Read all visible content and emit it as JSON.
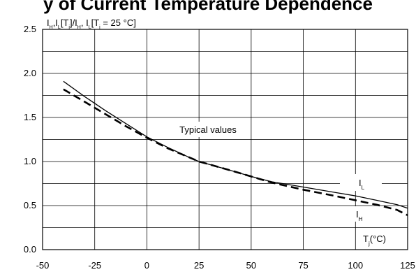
{
  "chart_data": {
    "type": "line",
    "title": "y of Current Temperature Dependence",
    "ylabel": {
      "prefix": "I",
      "s1": "H",
      "m1": ",I",
      "s2": "L",
      "m2": "[T",
      "s3": "j",
      "m3": "]/I",
      "s4": "H",
      "m4": ", I",
      "s5": "L",
      "m5": "[T",
      "s6": "j",
      "m6": " = 25 °C]"
    },
    "xlabel": {
      "prefix": "T",
      "s1": "j",
      "suffix": "(°C)"
    },
    "annotation": "Typical values",
    "x_ticks": [
      "-50",
      "-25",
      "0",
      "25",
      "50",
      "75",
      "100",
      "125"
    ],
    "y_ticks": [
      "0.0",
      "0.5",
      "1.0",
      "1.5",
      "2.0",
      "2.5"
    ],
    "xlim": [
      -50,
      125
    ],
    "ylim": [
      0,
      2.5
    ],
    "grid": true,
    "series": [
      {
        "name": "I_L",
        "label_main": "I",
        "label_sub": "L",
        "style": "solid",
        "points": [
          [
            -40,
            1.91
          ],
          [
            -30,
            1.74
          ],
          [
            -20,
            1.58
          ],
          [
            -10,
            1.43
          ],
          [
            0,
            1.28
          ],
          [
            10,
            1.16
          ],
          [
            20,
            1.05
          ],
          [
            25,
            1.0
          ],
          [
            40,
            0.9
          ],
          [
            50,
            0.83
          ],
          [
            60,
            0.77
          ],
          [
            75,
            0.71
          ],
          [
            90,
            0.65
          ],
          [
            100,
            0.61
          ],
          [
            110,
            0.56
          ],
          [
            120,
            0.51
          ],
          [
            125,
            0.47
          ]
        ]
      },
      {
        "name": "I_H",
        "label_main": "I",
        "label_sub": "H",
        "style": "dashed",
        "points": [
          [
            -40,
            1.82
          ],
          [
            -30,
            1.68
          ],
          [
            -20,
            1.54
          ],
          [
            -10,
            1.4
          ],
          [
            0,
            1.27
          ],
          [
            10,
            1.15
          ],
          [
            20,
            1.05
          ],
          [
            25,
            1.0
          ],
          [
            40,
            0.9
          ],
          [
            50,
            0.83
          ],
          [
            60,
            0.76
          ],
          [
            75,
            0.68
          ],
          [
            90,
            0.61
          ],
          [
            100,
            0.56
          ],
          [
            110,
            0.51
          ],
          [
            120,
            0.45
          ],
          [
            125,
            0.39
          ]
        ]
      }
    ]
  }
}
